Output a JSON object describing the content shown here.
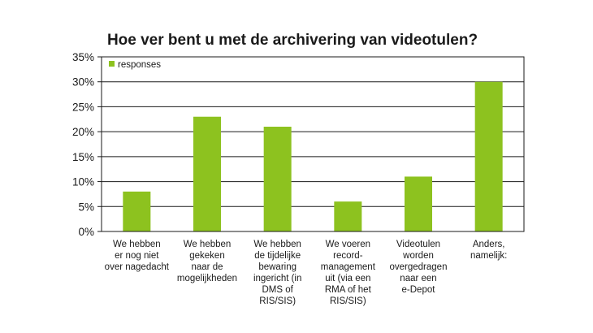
{
  "chart_data": {
    "type": "bar",
    "title": "Hoe ver bent u met de archivering van videotulen?",
    "xlabel": "",
    "ylabel": "",
    "ylim": [
      0,
      35
    ],
    "y_ticks": [
      "0%",
      "5%",
      "10%",
      "15%",
      "20%",
      "25%",
      "30%",
      "35%"
    ],
    "y_tick_values": [
      0,
      5,
      10,
      15,
      20,
      25,
      30,
      35
    ],
    "grid": true,
    "legend": "top-left",
    "bar_color": "#8dc21f",
    "categories": [
      [
        "We hebben",
        "er nog niet",
        "over nagedacht"
      ],
      [
        "We hebben",
        "gekeken",
        "naar de",
        "mogelijkheden"
      ],
      [
        "We hebben",
        "de tijdelijke",
        "bewaring",
        "ingericht (in",
        "DMS of",
        "RIS/SIS)"
      ],
      [
        "We voeren",
        "record-",
        "management",
        "uit (via een",
        "RMA of het",
        "RIS/SIS)"
      ],
      [
        "Videotulen",
        "worden",
        "overgedragen",
        "naar een",
        "e-Depot"
      ],
      [
        "Anders,",
        "namelijk:"
      ]
    ],
    "series": [
      {
        "name": "responses",
        "values": [
          8,
          23,
          21,
          6,
          11,
          30
        ]
      }
    ]
  }
}
